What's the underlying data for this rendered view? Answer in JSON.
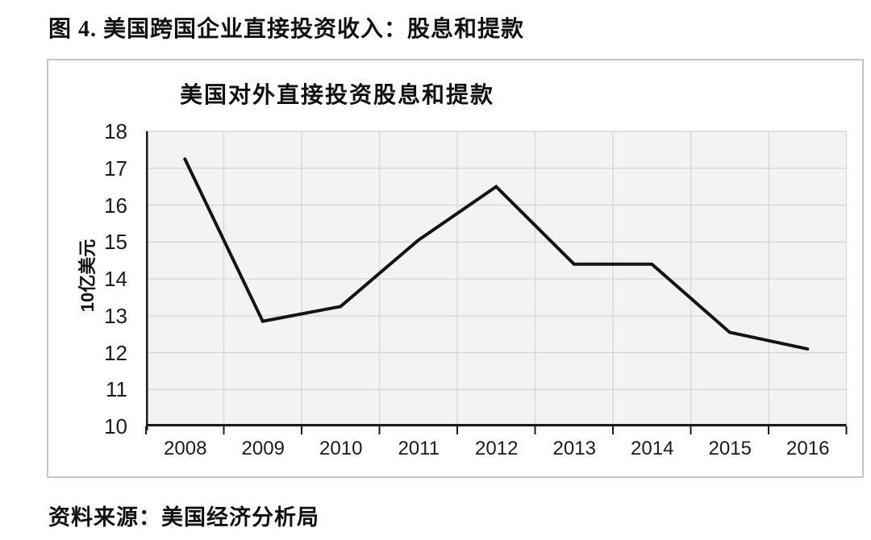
{
  "page": {
    "title": "图 4. 美国跨国企业直接投资收入：股息和提款",
    "source": "资料来源：美国经济分析局"
  },
  "chart_data": {
    "type": "line",
    "title": "美国对外直接投资股息和提款",
    "ylabel": "10亿美元",
    "xlabel": "",
    "categories": [
      "2008",
      "2009",
      "2010",
      "2011",
      "2012",
      "2013",
      "2014",
      "2015",
      "2016"
    ],
    "values": [
      17.25,
      12.85,
      13.25,
      15.05,
      16.5,
      14.4,
      14.4,
      12.55,
      12.1
    ],
    "ylim": [
      10,
      18
    ],
    "ytick_step": 1,
    "grid": true,
    "legend": "none",
    "line_color": "#141414",
    "plot_bg": "#f3f3f3",
    "grid_color": "#d9d9d9",
    "axis_color": "#1a1a1a",
    "text_color": "#1a1a1a"
  }
}
